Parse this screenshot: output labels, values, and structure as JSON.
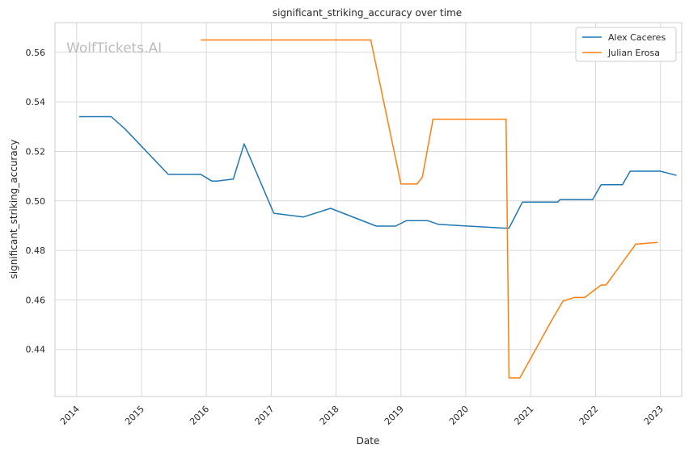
{
  "chart_data": {
    "type": "line",
    "title": "significant_striking_accuracy over time",
    "xlabel": "Date",
    "ylabel": "significant_striking_accuracy",
    "watermark": "WolfTickets.AI",
    "x_ticks": [
      "2014",
      "2015",
      "2016",
      "2017",
      "2018",
      "2019",
      "2020",
      "2021",
      "2022",
      "2023"
    ],
    "y_ticks": [
      "0.44",
      "0.46",
      "0.48",
      "0.50",
      "0.52",
      "0.54",
      "0.56"
    ],
    "xlim": [
      "2013-09-01",
      "2023-05-01"
    ],
    "ylim": [
      0.421,
      0.572
    ],
    "grid": true,
    "legend_position": "top-right",
    "series": [
      {
        "name": "Alex Caceres",
        "color": "#1f77b4",
        "points": [
          [
            "2014-01-15",
            0.534
          ],
          [
            "2014-07-15",
            0.534
          ],
          [
            "2014-10-01",
            0.529
          ],
          [
            "2015-06-01",
            0.5107
          ],
          [
            "2015-12-01",
            0.5107
          ],
          [
            "2016-02-01",
            0.508
          ],
          [
            "2016-03-01",
            0.508
          ],
          [
            "2016-06-01",
            0.5088
          ],
          [
            "2016-08-01",
            0.523
          ],
          [
            "2017-01-15",
            0.495
          ],
          [
            "2017-07-01",
            0.4935
          ],
          [
            "2017-12-01",
            0.497
          ],
          [
            "2018-08-15",
            0.4898
          ],
          [
            "2018-12-01",
            0.4898
          ],
          [
            "2019-02-01",
            0.492
          ],
          [
            "2019-06-01",
            0.492
          ],
          [
            "2019-08-01",
            0.4905
          ],
          [
            "2020-08-01",
            0.489
          ],
          [
            "2020-09-01",
            0.489
          ],
          [
            "2020-11-15",
            0.4995
          ],
          [
            "2021-06-01",
            0.4995
          ],
          [
            "2021-06-15",
            0.5005
          ],
          [
            "2021-12-15",
            0.5005
          ],
          [
            "2022-02-01",
            0.5065
          ],
          [
            "2022-06-01",
            0.5065
          ],
          [
            "2022-07-15",
            0.512
          ],
          [
            "2023-01-01",
            0.512
          ],
          [
            "2023-04-01",
            0.5103
          ]
        ]
      },
      {
        "name": "Julian Erosa",
        "color": "#ff7f0e",
        "points": [
          [
            "2015-12-01",
            0.565
          ],
          [
            "2018-07-15",
            0.565
          ],
          [
            "2019-01-01",
            0.5068
          ],
          [
            "2019-04-01",
            0.5068
          ],
          [
            "2019-05-01",
            0.5095
          ],
          [
            "2019-07-01",
            0.533
          ],
          [
            "2020-08-15",
            0.533
          ],
          [
            "2020-09-01",
            0.4285
          ],
          [
            "2020-11-01",
            0.4285
          ],
          [
            "2021-05-01",
            0.452
          ],
          [
            "2021-07-01",
            0.4595
          ],
          [
            "2021-09-01",
            0.461
          ],
          [
            "2021-11-01",
            0.461
          ],
          [
            "2022-02-01",
            0.466
          ],
          [
            "2022-03-01",
            0.466
          ],
          [
            "2022-08-15",
            0.4825
          ],
          [
            "2022-12-15",
            0.4832
          ]
        ]
      }
    ]
  }
}
